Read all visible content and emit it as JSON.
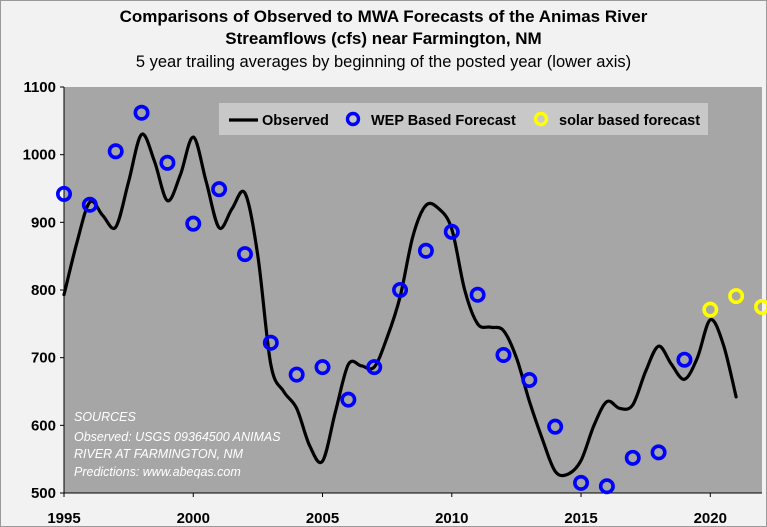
{
  "chart_data": {
    "type": "line",
    "title": "Comparisons of Observed to MWA Forecasts of the Animas River Streamflows (cfs) near Farmington, NM",
    "title_lines": [
      "Comparisons of Observed to MWA Forecasts of the Animas River",
      "Streamflows (cfs) near Farmington, NM"
    ],
    "subtitle": "5 year trailing averages by beginning of the posted year (lower axis)",
    "xlabel": "",
    "ylabel": "",
    "xlim": [
      1995,
      2022
    ],
    "ylim": [
      500,
      1100
    ],
    "x_ticks": [
      1995,
      2000,
      2005,
      2010,
      2015,
      2020
    ],
    "y_ticks": [
      500,
      600,
      700,
      800,
      900,
      1000,
      1100
    ],
    "grid": false,
    "plot_background": "#a6a6a6",
    "legend_position": "top-right",
    "series": [
      {
        "name": "Observed",
        "kind": "line",
        "color": "#000000",
        "x": [
          1995,
          1995.5,
          1996,
          1996.5,
          1997,
          1997.5,
          1998,
          1998.5,
          1999,
          1999.5,
          2000,
          2000.5,
          2001,
          2001.5,
          2002,
          2002.5,
          2003,
          2003.5,
          2004,
          2004.5,
          2005,
          2005.5,
          2006,
          2006.5,
          2007,
          2007.5,
          2008,
          2008.5,
          2009,
          2009.5,
          2010,
          2010.5,
          2011,
          2011.5,
          2012,
          2012.5,
          2013,
          2013.5,
          2014,
          2014.5,
          2015,
          2015.5,
          2016,
          2016.5,
          2017,
          2017.5,
          2018,
          2018.5,
          2019,
          2019.5,
          2020,
          2020.5,
          2021
        ],
        "values": [
          793,
          870,
          930,
          910,
          893,
          960,
          1030,
          990,
          932,
          970,
          1026,
          960,
          892,
          920,
          943,
          850,
          690,
          650,
          625,
          570,
          547,
          620,
          690,
          688,
          686,
          730,
          790,
          880,
          925,
          920,
          890,
          800,
          750,
          745,
          740,
          700,
          636,
          580,
          532,
          528,
          548,
          600,
          635,
          625,
          630,
          680,
          717,
          690,
          668,
          700,
          756,
          720,
          642
        ]
      },
      {
        "name": "WEP Based Forecast",
        "kind": "scatter",
        "color": "#0000ff",
        "x": [
          1995,
          1996,
          1997,
          1998,
          1999,
          2000,
          2001,
          2002,
          2003,
          2004,
          2005,
          2006,
          2007,
          2008,
          2009,
          2010,
          2011,
          2012,
          2013,
          2014,
          2015,
          2016,
          2017,
          2018,
          2019
        ],
        "values": [
          942,
          926,
          1005,
          1062,
          988,
          898,
          949,
          853,
          722,
          675,
          686,
          638,
          686,
          800,
          858,
          886,
          793,
          704,
          667,
          598,
          515,
          510,
          552,
          560,
          697
        ]
      },
      {
        "name": "solar based forecast",
        "kind": "scatter",
        "color": "#ffff00",
        "x": [
          2020,
          2021,
          2022
        ],
        "values": [
          771,
          791,
          775
        ]
      }
    ],
    "annotation": {
      "lines": [
        "SOURCES",
        "Observed: USGS 09364500 ANIMAS",
        "RIVER AT FARMINGTON, NM",
        "Predictions:  www.abeqas.com"
      ]
    }
  }
}
